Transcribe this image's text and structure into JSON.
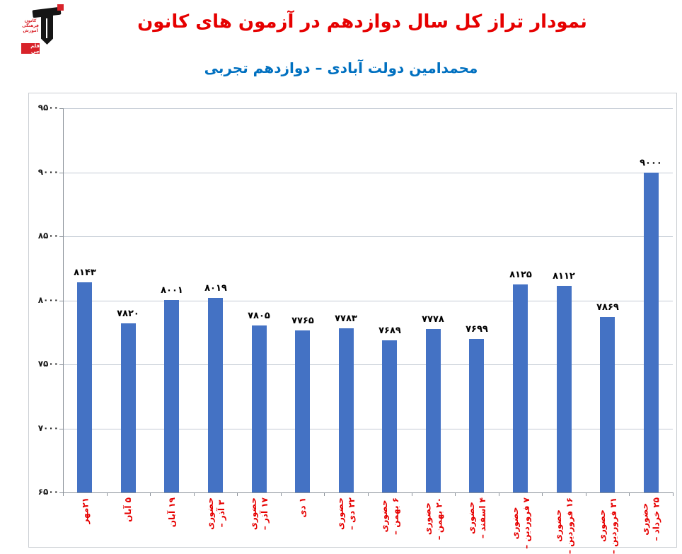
{
  "logo": {
    "lines": [
      "کانون",
      "فرهنگی",
      "آموزش"
    ],
    "badge": "قلم چی"
  },
  "chart_data": {
    "type": "bar",
    "title": "نمودار تراز کل سال دوازدهم در آزمون های کانون",
    "subtitle": "محمدامین دولت آبادی – دوازدهم تجربی",
    "title_color": "#E60000",
    "subtitle_color": "#0070C0",
    "bar_color": "#4472C4",
    "value_label_color": "#000000",
    "xlabel_color": "#E60000",
    "grid": true,
    "legend": false,
    "ylim": [
      6500,
      9500
    ],
    "yticks": [
      {
        "value": 9500,
        "label": "۹۵۰۰"
      },
      {
        "value": 9000,
        "label": "۹۰۰۰"
      },
      {
        "value": 8500,
        "label": "۸۵۰۰"
      },
      {
        "value": 8000,
        "label": "۸۰۰۰"
      },
      {
        "value": 7500,
        "label": "۷۵۰۰"
      },
      {
        "value": 7000,
        "label": "۷۰۰۰"
      },
      {
        "value": 6500,
        "label": "۶۵۰۰"
      }
    ],
    "points": [
      {
        "date": "۲۱مهر",
        "mode": "",
        "value": 8143,
        "value_label": "۸۱۴۳"
      },
      {
        "date": "۵ آبان",
        "mode": "",
        "value": 7820,
        "value_label": "۷۸۲۰"
      },
      {
        "date": "۱۹ آبان",
        "mode": "",
        "value": 8001,
        "value_label": "۸۰۰۱"
      },
      {
        "date": "۳ آذر –",
        "mode": "حضوری",
        "value": 8019,
        "value_label": "۸۰۱۹"
      },
      {
        "date": "۱۷ آذر –",
        "mode": "حضوری",
        "value": 7805,
        "value_label": "۷۸۰۵"
      },
      {
        "date": "۱ دی",
        "mode": "",
        "value": 7765,
        "value_label": "۷۷۶۵"
      },
      {
        "date": "۲۲ دی –",
        "mode": "حضوری",
        "value": 7783,
        "value_label": "۷۷۸۳"
      },
      {
        "date": "۶ بهمن –",
        "mode": "حضوری",
        "value": 7689,
        "value_label": "۷۶۸۹"
      },
      {
        "date": "۲۰ بهمن –",
        "mode": "حضوری",
        "value": 7778,
        "value_label": "۷۷۷۸"
      },
      {
        "date": "۴ اسفند –",
        "mode": "حضوری",
        "value": 7699,
        "value_label": "۷۶۹۹"
      },
      {
        "date": "۷ فروردین –",
        "mode": "حضوری",
        "value": 8125,
        "value_label": "۸۱۲۵"
      },
      {
        "date": "۱۶ فروردین –",
        "mode": "حضوری",
        "value": 8112,
        "value_label": "۸۱۱۲"
      },
      {
        "date": "۳۱ فروردین –",
        "mode": "حضوری",
        "value": 7869,
        "value_label": "۷۸۶۹"
      },
      {
        "date": "۲۵ خرداد –",
        "mode": "حضوری",
        "value": 9000,
        "value_label": "۹۰۰۰"
      }
    ]
  }
}
